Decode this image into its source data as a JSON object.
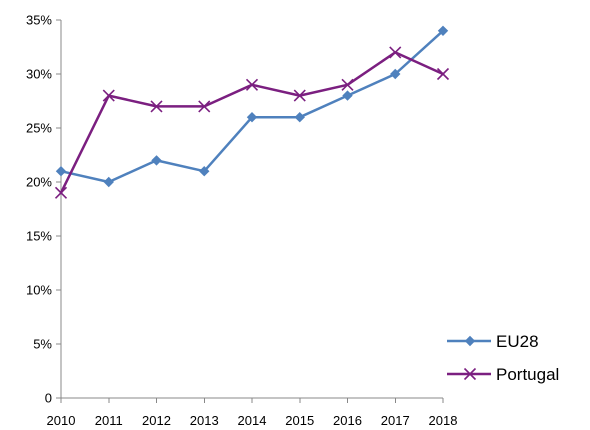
{
  "chart_data": {
    "type": "line",
    "title": "",
    "xlabel": "",
    "ylabel": "",
    "categories": [
      "2010",
      "2011",
      "2012",
      "2013",
      "2014",
      "2015",
      "2016",
      "2017",
      "2018"
    ],
    "ylim": [
      0,
      35
    ],
    "yticks": [
      0,
      5,
      10,
      15,
      20,
      25,
      30,
      35
    ],
    "ytick_labels": [
      "0",
      "5%",
      "10%",
      "15%",
      "20%",
      "25%",
      "30%",
      "35%"
    ],
    "grid": false,
    "legend_position": "bottom-right",
    "series": [
      {
        "name": "EU28",
        "values": [
          21,
          20,
          22,
          21,
          26,
          26,
          28,
          30,
          34
        ],
        "color": "#4f81bd",
        "marker": "diamond"
      },
      {
        "name": "Portugal",
        "values": [
          19,
          28,
          27,
          27,
          29,
          28,
          29,
          32,
          30
        ],
        "color": "#7b1f80",
        "marker": "x"
      }
    ]
  }
}
